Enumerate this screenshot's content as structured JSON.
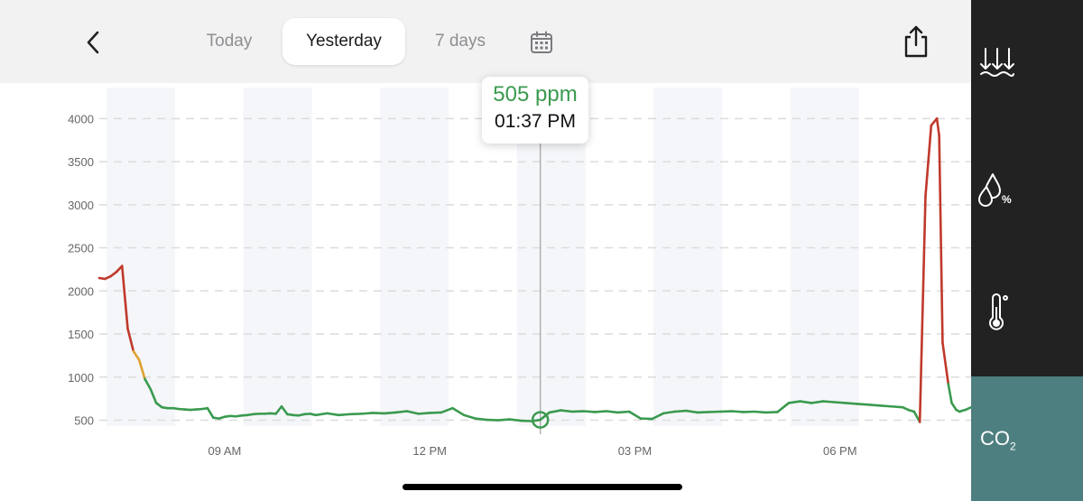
{
  "tabs": [
    {
      "label": "Today",
      "active": false
    },
    {
      "label": "Yesterday",
      "active": true
    },
    {
      "label": "7 days",
      "active": false
    }
  ],
  "icons": {
    "back": "chevron-left-icon",
    "calendar": "calendar-icon",
    "share": "share-icon",
    "pressure": "pressure-icon",
    "humidity": "humidity-icon",
    "temperature": "thermometer-icon"
  },
  "sidebar": {
    "co2_label": "CO",
    "co2_subscript": "2"
  },
  "tooltip": {
    "value": "505 ppm",
    "time": "01:37 PM"
  },
  "colors": {
    "good": "#3a9a4f",
    "moderate": "#e0a030",
    "bad": "#c0392b",
    "sidebar_active": "#4e7f80",
    "sidebar_bg": "#222222"
  },
  "chart_data": {
    "type": "line",
    "title": "",
    "xlabel": "",
    "ylabel": "",
    "unit": "ppm",
    "ylim": [
      380,
      4150
    ],
    "xlim": [
      "07:10",
      "19:55"
    ],
    "yticks": [
      500,
      1000,
      1500,
      2000,
      2500,
      3000,
      3500,
      4000
    ],
    "xticks": [
      "09 AM",
      "12 PM",
      "03 PM",
      "06 PM"
    ],
    "xtick_times": [
      "09:00",
      "12:00",
      "15:00",
      "18:00"
    ],
    "thresholds": {
      "moderate": 1000,
      "bad": 1400
    },
    "selected_point": {
      "x": "13:37",
      "y": 505
    },
    "series": [
      {
        "x": [
          "07:10",
          "07:15",
          "07:20",
          "07:25",
          "07:30",
          "07:35",
          "07:40",
          "07:45",
          "07:50",
          "07:55",
          "08:00",
          "08:05",
          "08:10",
          "08:15",
          "08:20",
          "08:25",
          "08:30",
          "08:35",
          "08:40",
          "08:45",
          "08:50",
          "08:55",
          "09:00",
          "09:05",
          "09:10",
          "09:15",
          "09:20",
          "09:25",
          "09:30",
          "09:35",
          "09:40",
          "09:45",
          "09:50",
          "09:55",
          "10:00",
          "10:05",
          "10:10",
          "10:15",
          "10:20",
          "10:30",
          "10:40",
          "10:50",
          "11:00",
          "11:10",
          "11:20",
          "11:30",
          "11:40",
          "11:50",
          "12:00",
          "12:10",
          "12:20",
          "12:30",
          "12:40",
          "12:50",
          "13:00",
          "13:10",
          "13:20",
          "13:30",
          "13:37",
          "13:45",
          "13:55",
          "14:05",
          "14:15",
          "14:25",
          "14:35",
          "14:45",
          "14:55",
          "15:05",
          "15:15",
          "15:25",
          "15:35",
          "15:45",
          "15:55",
          "16:05",
          "16:15",
          "16:25",
          "16:35",
          "16:45",
          "16:55",
          "17:05",
          "17:15",
          "17:25",
          "17:35",
          "17:40",
          "17:45",
          "17:55",
          "18:05",
          "18:15",
          "18:25",
          "18:35",
          "18:45",
          "18:55",
          "19:00",
          "19:05",
          "19:10",
          "19:15",
          "19:20",
          "19:25",
          "19:27",
          "19:30",
          "19:35",
          "19:38",
          "19:42",
          "19:45",
          "19:47",
          "19:50",
          "19:55"
        ],
        "y": [
          2150,
          2140,
          2170,
          2220,
          2290,
          1560,
          1300,
          1200,
          980,
          860,
          700,
          650,
          640,
          640,
          630,
          625,
          620,
          625,
          630,
          640,
          530,
          520,
          540,
          550,
          545,
          555,
          560,
          570,
          575,
          575,
          580,
          575,
          660,
          570,
          560,
          555,
          570,
          575,
          560,
          580,
          560,
          570,
          575,
          585,
          580,
          590,
          605,
          575,
          585,
          590,
          640,
          560,
          520,
          505,
          500,
          510,
          495,
          490,
          505,
          590,
          615,
          600,
          605,
          595,
          605,
          590,
          600,
          520,
          515,
          580,
          600,
          610,
          590,
          595,
          600,
          605,
          595,
          600,
          590,
          595,
          700,
          720,
          700,
          710,
          720,
          710,
          700,
          690,
          680,
          670,
          660,
          650,
          620,
          600,
          480,
          3100,
          3920,
          4000,
          3800,
          1400,
          920,
          700,
          620,
          600,
          610,
          620,
          650
        ]
      }
    ]
  }
}
